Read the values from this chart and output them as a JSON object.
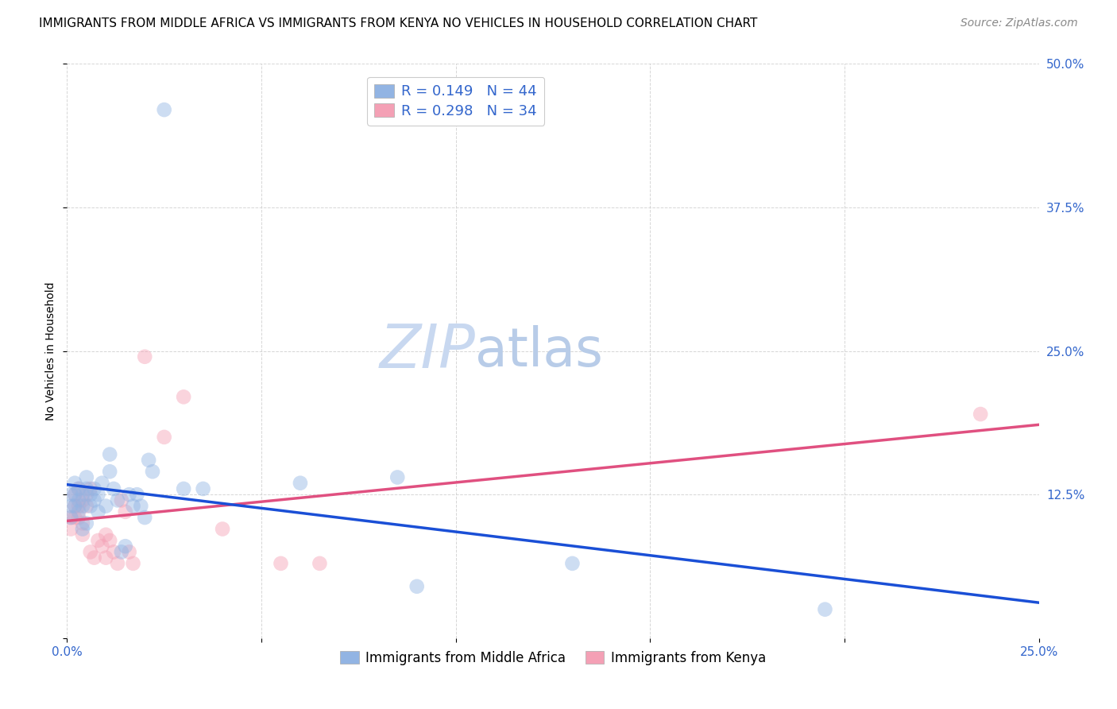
{
  "title": "IMMIGRANTS FROM MIDDLE AFRICA VS IMMIGRANTS FROM KENYA NO VEHICLES IN HOUSEHOLD CORRELATION CHART",
  "source_text": "Source: ZipAtlas.com",
  "ylabel": "No Vehicles in Household",
  "xlabel": "",
  "watermark_zip": "ZIP",
  "watermark_atlas": "atlas",
  "legend_blue_r": "R = 0.149",
  "legend_blue_n": "N = 44",
  "legend_pink_r": "R = 0.298",
  "legend_pink_n": "N = 34",
  "legend_blue_label": "Immigrants from Middle Africa",
  "legend_pink_label": "Immigrants from Kenya",
  "xlim": [
    0.0,
    0.25
  ],
  "ylim": [
    0.0,
    0.5
  ],
  "xticks": [
    0.0,
    0.05,
    0.1,
    0.15,
    0.2,
    0.25
  ],
  "yticks_right": [
    0.0,
    0.125,
    0.25,
    0.375,
    0.5
  ],
  "ytick_labels_right": [
    "",
    "12.5%",
    "25.0%",
    "37.5%",
    "50.0%"
  ],
  "xtick_labels": [
    "0.0%",
    "",
    "",
    "",
    "",
    "25.0%"
  ],
  "blue_color": "#92b4e3",
  "pink_color": "#f4a0b5",
  "blue_line_color": "#1a4fd6",
  "pink_line_color": "#e05080",
  "blue_scatter": [
    [
      0.001,
      0.125
    ],
    [
      0.001,
      0.115
    ],
    [
      0.001,
      0.105
    ],
    [
      0.002,
      0.135
    ],
    [
      0.002,
      0.125
    ],
    [
      0.002,
      0.115
    ],
    [
      0.003,
      0.13
    ],
    [
      0.003,
      0.12
    ],
    [
      0.003,
      0.11
    ],
    [
      0.004,
      0.125
    ],
    [
      0.004,
      0.115
    ],
    [
      0.004,
      0.095
    ],
    [
      0.005,
      0.14
    ],
    [
      0.005,
      0.13
    ],
    [
      0.005,
      0.1
    ],
    [
      0.006,
      0.125
    ],
    [
      0.006,
      0.115
    ],
    [
      0.007,
      0.13
    ],
    [
      0.007,
      0.12
    ],
    [
      0.008,
      0.11
    ],
    [
      0.008,
      0.125
    ],
    [
      0.009,
      0.135
    ],
    [
      0.01,
      0.115
    ],
    [
      0.011,
      0.16
    ],
    [
      0.011,
      0.145
    ],
    [
      0.012,
      0.13
    ],
    [
      0.013,
      0.12
    ],
    [
      0.014,
      0.075
    ],
    [
      0.015,
      0.08
    ],
    [
      0.016,
      0.125
    ],
    [
      0.017,
      0.115
    ],
    [
      0.018,
      0.125
    ],
    [
      0.019,
      0.115
    ],
    [
      0.02,
      0.105
    ],
    [
      0.021,
      0.155
    ],
    [
      0.022,
      0.145
    ],
    [
      0.025,
      0.46
    ],
    [
      0.03,
      0.13
    ],
    [
      0.035,
      0.13
    ],
    [
      0.06,
      0.135
    ],
    [
      0.085,
      0.14
    ],
    [
      0.09,
      0.045
    ],
    [
      0.13,
      0.065
    ],
    [
      0.195,
      0.025
    ]
  ],
  "pink_scatter": [
    [
      0.001,
      0.105
    ],
    [
      0.001,
      0.095
    ],
    [
      0.002,
      0.125
    ],
    [
      0.002,
      0.115
    ],
    [
      0.002,
      0.105
    ],
    [
      0.003,
      0.13
    ],
    [
      0.003,
      0.115
    ],
    [
      0.003,
      0.105
    ],
    [
      0.004,
      0.12
    ],
    [
      0.004,
      0.1
    ],
    [
      0.004,
      0.09
    ],
    [
      0.005,
      0.125
    ],
    [
      0.005,
      0.115
    ],
    [
      0.006,
      0.13
    ],
    [
      0.006,
      0.075
    ],
    [
      0.007,
      0.07
    ],
    [
      0.008,
      0.085
    ],
    [
      0.009,
      0.08
    ],
    [
      0.01,
      0.09
    ],
    [
      0.01,
      0.07
    ],
    [
      0.011,
      0.085
    ],
    [
      0.012,
      0.075
    ],
    [
      0.013,
      0.065
    ],
    [
      0.014,
      0.12
    ],
    [
      0.015,
      0.11
    ],
    [
      0.016,
      0.075
    ],
    [
      0.017,
      0.065
    ],
    [
      0.02,
      0.245
    ],
    [
      0.025,
      0.175
    ],
    [
      0.03,
      0.21
    ],
    [
      0.04,
      0.095
    ],
    [
      0.055,
      0.065
    ],
    [
      0.065,
      0.065
    ],
    [
      0.235,
      0.195
    ]
  ],
  "title_fontsize": 11,
  "axis_label_fontsize": 10,
  "tick_fontsize": 11,
  "legend_fontsize": 13,
  "source_fontsize": 10,
  "watermark_zip_size": 55,
  "watermark_atlas_size": 48,
  "watermark_color_zip": "#c8d8f0",
  "watermark_color_atlas": "#b8cce8",
  "background_color": "#ffffff",
  "grid_color": "#cccccc",
  "scatter_size": 180,
  "scatter_alpha": 0.45,
  "figsize": [
    14.06,
    8.92
  ],
  "dpi": 100
}
